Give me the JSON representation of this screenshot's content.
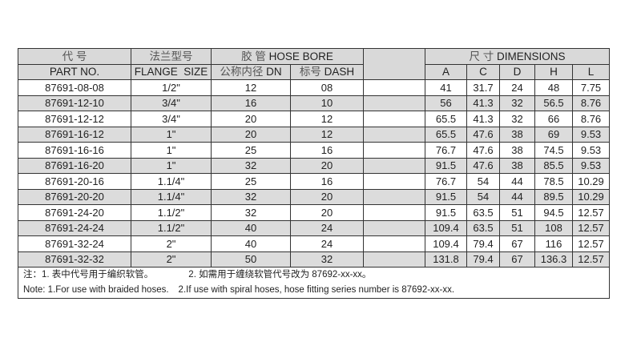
{
  "header": {
    "part_cn": "代 号",
    "part_en": "PART NO.",
    "flange_cn": "法兰型号",
    "flange_en": "FLANGE  SIZE",
    "hose_bore_cn": "胶 管",
    "hose_bore_en": "HOSE BORE",
    "dn_cn": "公称内径",
    "dn_en": "DN",
    "dash_cn": "标号",
    "dash_en": "DASH",
    "dims_cn": "尺 寸",
    "dims_en": "DIMENSIONS",
    "dim_cols": [
      "A",
      "C",
      "D",
      "H",
      "L"
    ]
  },
  "rows": [
    {
      "part": "87691-08-08",
      "flange": "1/2\"",
      "dn": "12",
      "dash": "08",
      "A": "41",
      "C": "31.7",
      "D": "24",
      "H": "48",
      "L": "7.75"
    },
    {
      "part": "87691-12-10",
      "flange": "3/4\"",
      "dn": "16",
      "dash": "10",
      "A": "56",
      "C": "41.3",
      "D": "32",
      "H": "56.5",
      "L": "8.76"
    },
    {
      "part": "87691-12-12",
      "flange": "3/4\"",
      "dn": "20",
      "dash": "12",
      "A": "65.5",
      "C": "41.3",
      "D": "32",
      "H": "66",
      "L": "8.76"
    },
    {
      "part": "87691-16-12",
      "flange": "1\"",
      "dn": "20",
      "dash": "12",
      "A": "65.5",
      "C": "47.6",
      "D": "38",
      "H": "69",
      "L": "9.53"
    },
    {
      "part": "87691-16-16",
      "flange": "1\"",
      "dn": "25",
      "dash": "16",
      "A": "76.7",
      "C": "47.6",
      "D": "38",
      "H": "74.5",
      "L": "9.53"
    },
    {
      "part": "87691-16-20",
      "flange": "1\"",
      "dn": "32",
      "dash": "20",
      "A": "91.5",
      "C": "47.6",
      "D": "38",
      "H": "85.5",
      "L": "9.53"
    },
    {
      "part": "87691-20-16",
      "flange": "1.1/4\"",
      "dn": "25",
      "dash": "16",
      "A": "76.7",
      "C": "54",
      "D": "44",
      "H": "78.5",
      "L": "10.29"
    },
    {
      "part": "87691-20-20",
      "flange": "1.1/4\"",
      "dn": "32",
      "dash": "20",
      "A": "91.5",
      "C": "54",
      "D": "44",
      "H": "89.5",
      "L": "10.29"
    },
    {
      "part": "87691-24-20",
      "flange": "1.1/2\"",
      "dn": "32",
      "dash": "20",
      "A": "91.5",
      "C": "63.5",
      "D": "51",
      "H": "94.5",
      "L": "12.57"
    },
    {
      "part": "87691-24-24",
      "flange": "1.1/2\"",
      "dn": "40",
      "dash": "24",
      "A": "109.4",
      "C": "63.5",
      "D": "51",
      "H": "108",
      "L": "12.57"
    },
    {
      "part": "87691-32-24",
      "flange": "2\"",
      "dn": "40",
      "dash": "24",
      "A": "109.4",
      "C": "79.4",
      "D": "67",
      "H": "116",
      "L": "12.57"
    },
    {
      "part": "87691-32-32",
      "flange": "2\"",
      "dn": "50",
      "dash": "32",
      "A": "131.8",
      "C": "79.4",
      "D": "67",
      "H": "136.3",
      "L": "12.57"
    }
  ],
  "notes": {
    "cn_1": "注：1. 表中代号用于编织软管。",
    "cn_2": "2. 如需用于缠绕软管代号改为 87692-xx-xx。",
    "en_1": "Note: 1.For use with braided hoses.",
    "en_2": "2.If use with spiral hoses, hose fitting series number is 87692-xx-xx."
  }
}
